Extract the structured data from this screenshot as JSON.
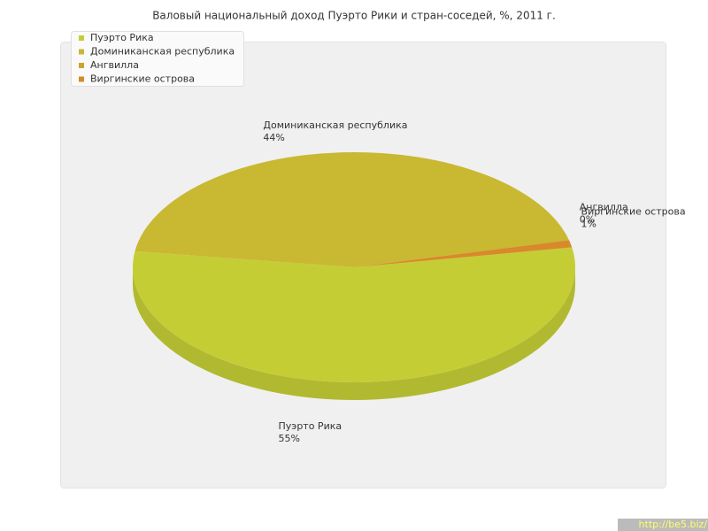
{
  "chart_data": {
    "type": "pie3d",
    "title": "Валовый национальный доход Пуэрто Рики и стран-соседей, %, 2011 г.",
    "categories": [
      "Пуэрто Рика",
      "Доминиканская республика",
      "Ангвилла",
      "Виргинские острова"
    ],
    "values": [
      55,
      44,
      0,
      1
    ],
    "value_labels": [
      "55%",
      "44%",
      "0%",
      "1%"
    ],
    "colors": [
      "#c5cd35",
      "#c9b832",
      "#c9a42e",
      "#d8892a"
    ],
    "legend": "top-left",
    "watermark": "http://be5.biz/"
  }
}
